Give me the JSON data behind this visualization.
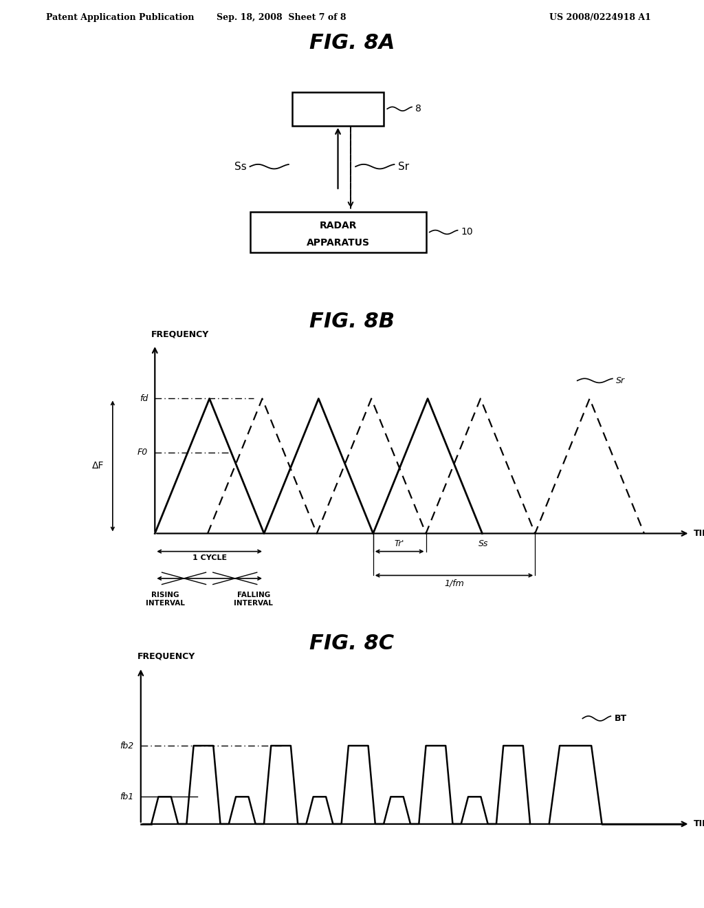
{
  "bg_color": "#ffffff",
  "header_left": "Patent Application Publication",
  "header_center": "Sep. 18, 2008  Sheet 7 of 8",
  "header_right": "US 2008/0224918 A1",
  "fig8a_title": "FIG. 8A",
  "fig8b_title": "FIG. 8B",
  "fig8c_title": "FIG. 8C"
}
